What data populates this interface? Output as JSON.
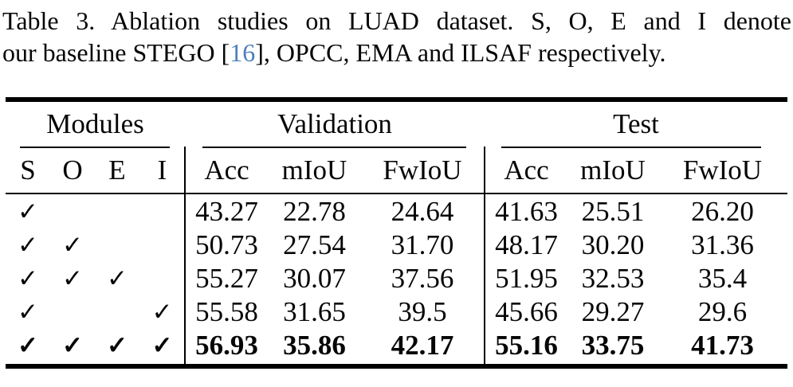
{
  "caption": {
    "line1": "Table 3. Ablation studies on LUAD dataset. S, O, E and I denote",
    "line2_pre": "our baseline STEGO [",
    "citation": "16",
    "line2_post": "], OPCC, EMA and ILSAF respectively."
  },
  "colors": {
    "text": "#060606",
    "citation": "#4d7ebe",
    "background": "#ffffff",
    "rule": "#000000"
  },
  "table": {
    "groups": {
      "modules": "Modules",
      "validation": "Validation",
      "test": "Test"
    },
    "columns": {
      "s": "S",
      "o": "O",
      "e": "E",
      "i": "I",
      "v_acc": "Acc",
      "v_miou": "mIoU",
      "v_fwiou": "FwIoU",
      "t_acc": "Acc",
      "t_miou": "mIoU",
      "t_fwiou": "FwIoU"
    },
    "check_glyph": "✓",
    "rows": [
      {
        "s": "✓",
        "o": "",
        "e": "",
        "i": "",
        "v_acc": "43.27",
        "v_miou": "22.78",
        "v_fwiou": "24.64",
        "t_acc": "41.63",
        "t_miou": "25.51",
        "t_fwiou": "26.20"
      },
      {
        "s": "✓",
        "o": "✓",
        "e": "",
        "i": "",
        "v_acc": "50.73",
        "v_miou": "27.54",
        "v_fwiou": "31.70",
        "t_acc": "48.17",
        "t_miou": "30.20",
        "t_fwiou": "31.36"
      },
      {
        "s": "✓",
        "o": "✓",
        "e": "✓",
        "i": "",
        "v_acc": "55.27",
        "v_miou": "30.07",
        "v_fwiou": "37.56",
        "t_acc": "51.95",
        "t_miou": "32.53",
        "t_fwiou": "35.4"
      },
      {
        "s": "✓",
        "o": "",
        "e": "",
        "i": "✓",
        "v_acc": "55.58",
        "v_miou": "31.65",
        "v_fwiou": "39.5",
        "t_acc": "45.66",
        "t_miou": "29.27",
        "t_fwiou": "29.6"
      },
      {
        "s": "✓",
        "o": "✓",
        "e": "✓",
        "i": "✓",
        "v_acc": "56.93",
        "v_miou": "35.86",
        "v_fwiou": "42.17",
        "t_acc": "55.16",
        "t_miou": "33.75",
        "t_fwiou": "41.73"
      }
    ]
  }
}
